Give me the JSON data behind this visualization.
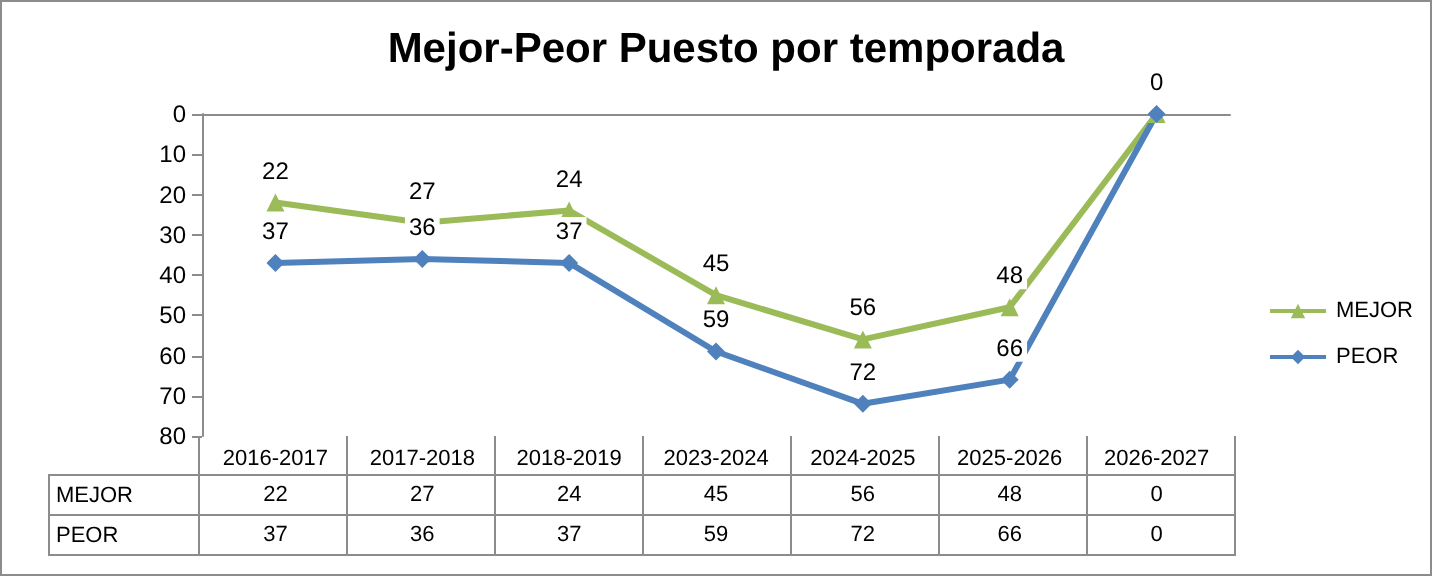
{
  "chart_data": {
    "type": "line",
    "title": "Mejor-Peor Puesto por temporada",
    "categories": [
      "2016-2017",
      "2017-2018",
      "2018-2019",
      "2023-2024",
      "2024-2025",
      "2025-2026",
      "2026-2027"
    ],
    "series": [
      {
        "name": "MEJOR",
        "color": "#9bbb59",
        "marker": "triangle",
        "values": [
          22,
          27,
          24,
          45,
          56,
          48,
          0
        ]
      },
      {
        "name": "PEOR",
        "color": "#4f81bd",
        "marker": "diamond",
        "values": [
          37,
          36,
          37,
          59,
          72,
          66,
          0
        ]
      }
    ],
    "annotations": [
      {
        "text": "22",
        "x": "2016-2017",
        "y": 22
      },
      {
        "text": "27",
        "x": "2017-2018",
        "y": 27
      },
      {
        "text": "24",
        "x": "2018-2019",
        "y": 24
      },
      {
        "text": "45",
        "x": "2023-2024",
        "y": 45
      },
      {
        "text": "56",
        "x": "2024-2025",
        "y": 56
      },
      {
        "text": "48",
        "x": "2025-2026",
        "y": 48
      },
      {
        "text": "0",
        "x": "2026-2027",
        "y": 0
      },
      {
        "text": "37",
        "x": "2016-2017",
        "y": 37
      },
      {
        "text": "36",
        "x": "2017-2018",
        "y": 36
      },
      {
        "text": "37",
        "x": "2018-2019",
        "y": 37
      },
      {
        "text": "59",
        "x": "2023-2024",
        "y": 59
      },
      {
        "text": "72",
        "x": "2024-2025",
        "y": 72
      },
      {
        "text": "66",
        "x": "2025-2026",
        "y": 66
      }
    ],
    "ylim": [
      80,
      0
    ],
    "yticks": [
      0,
      10,
      20,
      30,
      40,
      50,
      60,
      70,
      80
    ],
    "legend": "right",
    "data_labels": true
  }
}
